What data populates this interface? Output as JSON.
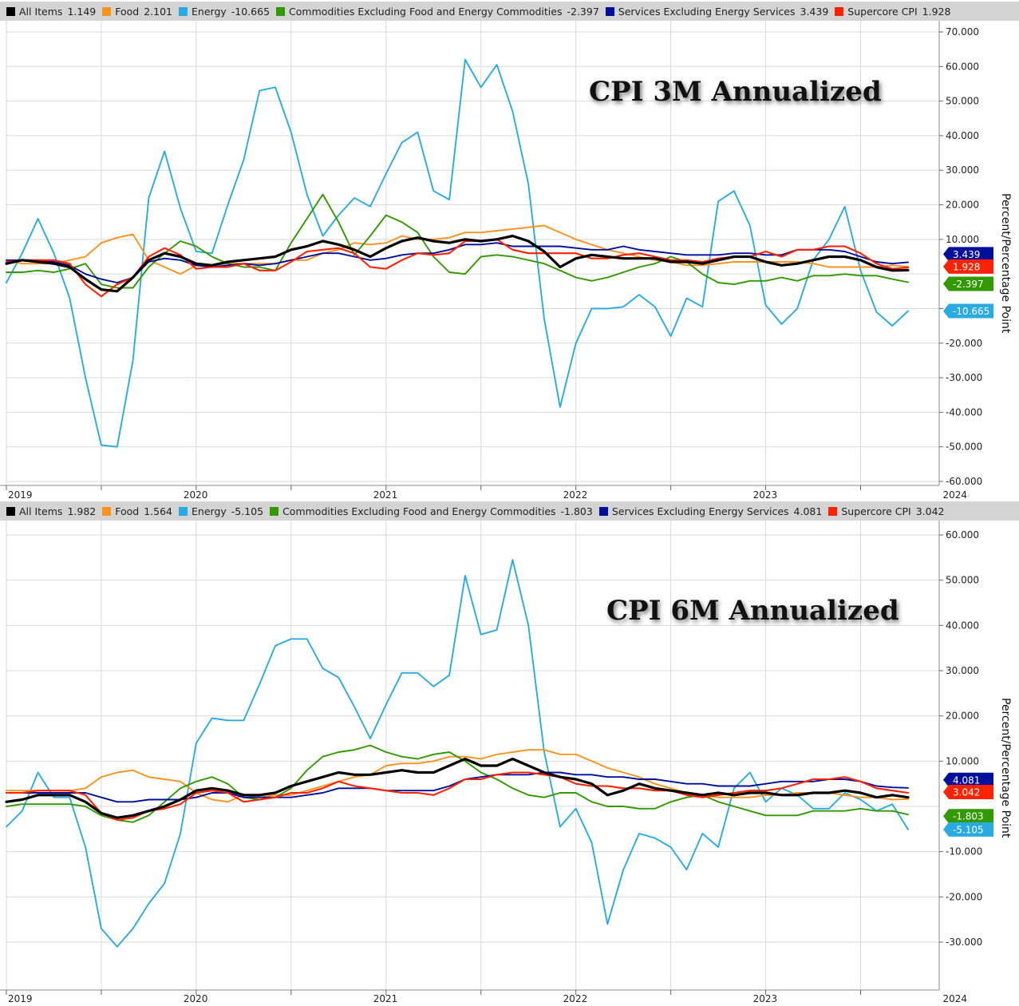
{
  "colors": {
    "all_items": "#000000",
    "food": "#f7931e",
    "energy": "#29abe2",
    "core_goods": "#339900",
    "core_services": "#000e9c",
    "supercore": "#ff2200"
  },
  "chart_data": [
    {
      "type": "line",
      "title": "CPI 3M Annualized",
      "ylabel": "Percent/Percentage Point",
      "ylim": [
        -62,
        72
      ],
      "y_ticks": [
        "70.000",
        "60.000",
        "50.000",
        "40.000",
        "30.000",
        "20.000",
        "10.000",
        "-10.000",
        "-20.000",
        "-30.000",
        "-40.000",
        "-50.000",
        "-60.000"
      ],
      "x_ticks": [
        "2019",
        "2020",
        "2021",
        "2022",
        "2023",
        "2024"
      ],
      "legend": [
        {
          "key": "all_items",
          "label": "All Items",
          "value": "1.149"
        },
        {
          "key": "food",
          "label": "Food",
          "value": "2.101"
        },
        {
          "key": "energy",
          "label": "Energy",
          "value": "-10.665"
        },
        {
          "key": "core_goods",
          "label": "Commodities Excluding Food and Energy Commodities",
          "value": "-2.397"
        },
        {
          "key": "core_services",
          "label": "Services Excluding Energy Services",
          "value": "3.439"
        },
        {
          "key": "supercore",
          "label": "Supercore CPI",
          "value": "1.928"
        }
      ],
      "badges": [
        {
          "key": "core_services",
          "text": "3.439"
        },
        {
          "key": "supercore",
          "text": "1.928"
        },
        {
          "key": "core_goods",
          "text": "-2.397"
        },
        {
          "key": "energy",
          "text": "-10.665"
        }
      ],
      "x_start": "2019-01",
      "series": [
        {
          "key": "energy",
          "name": "Energy",
          "values": [
            -2.5,
            6,
            16,
            6,
            -7,
            -30,
            -49.5,
            -50,
            -25,
            22,
            35.5,
            19,
            6.5,
            6,
            20,
            33,
            53,
            54,
            41,
            23,
            11,
            17,
            22,
            19.5,
            29,
            38,
            41,
            24,
            21.5,
            62,
            54,
            60.5,
            47,
            26,
            -13,
            -38.5,
            -20,
            -10,
            -10,
            -9.5,
            -6,
            -9.5,
            -18,
            -7,
            -9.5,
            21,
            24,
            14,
            -9,
            -14.5,
            -10,
            4,
            10,
            19.5,
            1,
            -11,
            -15,
            -10.7
          ]
        },
        {
          "key": "food",
          "name": "Food",
          "values": [
            4,
            3,
            3,
            3,
            4,
            5,
            9,
            10.5,
            11.5,
            4,
            2,
            0,
            2.5,
            2.5,
            3,
            3,
            3,
            3,
            4,
            4,
            6,
            7,
            9,
            8.5,
            9,
            11,
            10,
            10,
            10.5,
            12,
            12,
            12.5,
            13,
            13.5,
            14,
            12,
            10,
            8.5,
            7,
            6,
            5,
            4,
            3.5,
            2.5,
            2.5,
            3,
            3.5,
            3.5,
            3.5,
            3.5,
            3.5,
            3,
            2,
            2,
            2,
            2,
            2.5,
            2.1
          ]
        },
        {
          "key": "core_goods",
          "name": "Commodities Excluding Food and Energy Commodities",
          "values": [
            0.5,
            0.5,
            1,
            0.5,
            1.5,
            3,
            -3,
            -4,
            -4,
            2,
            6,
            9.5,
            8,
            5,
            3,
            2,
            2,
            1,
            9,
            16,
            23,
            15,
            5.5,
            11,
            17,
            15,
            12,
            5,
            0.5,
            0,
            5,
            5.5,
            5,
            4,
            3,
            1,
            -1,
            -2,
            -1,
            0.5,
            2,
            3,
            5,
            3.5,
            0,
            -2.5,
            -3,
            -2,
            -2,
            -1,
            -2,
            -0.5,
            -0.5,
            0,
            -0.5,
            -0.5,
            -1.5,
            -2.4
          ]
        },
        {
          "key": "core_services",
          "name": "Services Excluding Energy Services",
          "values": [
            4,
            4,
            4,
            3.5,
            2.5,
            0,
            -1.5,
            -2.5,
            -1,
            3.5,
            4.5,
            4,
            2.5,
            2,
            2.5,
            3,
            2.5,
            3,
            4,
            5,
            6,
            6,
            5,
            4,
            4.5,
            5.5,
            6,
            6,
            7,
            8.5,
            8.5,
            9,
            8,
            8,
            8,
            8,
            7.5,
            7,
            7,
            8,
            7,
            6.5,
            6,
            5.5,
            5.5,
            5.5,
            6,
            6,
            5.5,
            5.5,
            7,
            7,
            7,
            6.5,
            5,
            3.5,
            3,
            3.4
          ]
        },
        {
          "key": "supercore",
          "name": "Supercore CPI",
          "values": [
            3.5,
            4,
            4,
            4,
            3,
            -3,
            -6.5,
            -3,
            -1,
            5,
            7.5,
            5.5,
            1.5,
            2,
            2,
            3,
            1,
            1,
            3.5,
            6.5,
            7,
            7.5,
            6,
            2,
            1.5,
            4,
            6,
            5.5,
            6,
            9.5,
            9.5,
            10,
            7,
            6,
            6,
            6,
            6,
            4.5,
            4.5,
            5.5,
            6,
            5,
            4,
            4,
            3.5,
            4.5,
            5,
            5,
            6.5,
            5,
            7,
            7,
            8,
            8,
            6,
            3,
            1.5,
            1.9
          ]
        },
        {
          "key": "all_items",
          "name": "All Items",
          "values": [
            3,
            4,
            3.5,
            3,
            2,
            -1.5,
            -4.5,
            -5,
            -1,
            4,
            6,
            5,
            3,
            2.5,
            3.5,
            4,
            4.5,
            5,
            7,
            8,
            9.5,
            8.5,
            7,
            5,
            7.5,
            9.5,
            10.5,
            9.5,
            9,
            10,
            9.5,
            10,
            11,
            9.5,
            6.5,
            2,
            4.5,
            5.5,
            5,
            4.5,
            4.5,
            4.5,
            3.5,
            3.5,
            3,
            4,
            5,
            5,
            3.5,
            2.5,
            3,
            4,
            5,
            5,
            4,
            2,
            1,
            1.1
          ]
        }
      ]
    },
    {
      "type": "line",
      "title": "CPI 6M Annualized",
      "ylabel": "Percent/Percentage Point",
      "ylim": [
        -36,
        63
      ],
      "y_ticks": [
        "60.000",
        "50.000",
        "40.000",
        "30.000",
        "20.000",
        "10.000",
        "-10.000",
        "-20.000",
        "-30.000"
      ],
      "x_ticks": [
        "2019",
        "2020",
        "2021",
        "2022",
        "2023",
        "2024"
      ],
      "legend": [
        {
          "key": "all_items",
          "label": "All Items",
          "value": "1.982"
        },
        {
          "key": "food",
          "label": "Food",
          "value": "1.564"
        },
        {
          "key": "energy",
          "label": "Energy",
          "value": "-5.105"
        },
        {
          "key": "core_goods",
          "label": "Commodities Excluding Food and Energy Commodities",
          "value": "-1.803"
        },
        {
          "key": "core_services",
          "label": "Services Excluding Energy Services",
          "value": "4.081"
        },
        {
          "key": "supercore",
          "label": "Supercore CPI",
          "value": "3.042"
        }
      ],
      "badges": [
        {
          "key": "core_services",
          "text": "4.081"
        },
        {
          "key": "supercore",
          "text": "3.042"
        },
        {
          "key": "core_goods",
          "text": "-1.803"
        },
        {
          "key": "energy",
          "text": "-5.105"
        }
      ],
      "x_start": "2019-01",
      "series": [
        {
          "key": "energy",
          "name": "Energy",
          "values": [
            -4.5,
            -1,
            7.5,
            2,
            2,
            -9,
            -27,
            -31,
            -27,
            -21.5,
            -17,
            -6,
            14,
            19.5,
            19,
            19,
            27,
            35.5,
            37,
            37,
            30.5,
            28.5,
            22,
            15,
            22.5,
            29.5,
            29.5,
            26.5,
            29,
            51,
            38,
            39,
            54.5,
            40,
            12,
            -4.5,
            -0.5,
            -8,
            -26,
            -14,
            -6,
            -7,
            -9,
            -14,
            -6,
            -9,
            4,
            7.5,
            1,
            4,
            2.5,
            -0.5,
            -0.5,
            3,
            1.5,
            -1,
            0.5,
            -5.1
          ]
        },
        {
          "key": "food",
          "name": "Food",
          "values": [
            3.5,
            3.5,
            3.5,
            3.5,
            3.5,
            4,
            6.5,
            7.5,
            8,
            6.5,
            6,
            5.5,
            3,
            1.5,
            1,
            2.5,
            2,
            2.5,
            2.5,
            3.5,
            4.5,
            5.5,
            6.5,
            7,
            9,
            9.5,
            9.5,
            10,
            11,
            11,
            10.5,
            11.5,
            12,
            12.5,
            12.5,
            11.5,
            11.5,
            10,
            8.5,
            7.5,
            6.5,
            5,
            4,
            3,
            2.5,
            2,
            2,
            2,
            2.5,
            2.5,
            3,
            3,
            3,
            2.5,
            2,
            2,
            1.5,
            1.6
          ]
        },
        {
          "key": "core_goods",
          "name": "Commodities Excluding Food and Energy Commodities",
          "values": [
            0,
            0.5,
            0.5,
            0.5,
            0.5,
            0,
            -2,
            -3,
            -3.5,
            -2,
            1,
            4,
            5.5,
            6.5,
            5,
            2,
            1.5,
            2,
            4,
            8,
            11,
            12,
            12.5,
            13.5,
            12,
            11,
            10.5,
            11.5,
            12,
            10,
            7.5,
            6,
            4,
            2.5,
            2,
            3,
            3,
            1,
            0,
            0,
            -0.5,
            -0.5,
            1,
            2,
            2.5,
            1,
            0,
            -1,
            -2,
            -2,
            -2,
            -1,
            -1,
            -1,
            -0.5,
            -1,
            -1,
            -1.8
          ]
        },
        {
          "key": "core_services",
          "name": "Services Excluding Energy Services",
          "values": [
            3,
            3,
            3,
            3,
            3,
            3,
            2,
            1,
            1,
            1.5,
            1.5,
            1.5,
            2,
            3,
            3,
            2,
            2,
            2,
            2,
            2.5,
            3,
            4,
            4,
            4,
            3.5,
            3.5,
            3.5,
            3.5,
            4.5,
            6,
            6.5,
            7,
            7,
            7,
            7.5,
            7.5,
            7,
            7,
            6.5,
            6.5,
            6,
            6,
            5.5,
            5,
            5,
            4.5,
            4.5,
            4.5,
            5,
            5.5,
            5.5,
            5.5,
            6,
            6,
            5.5,
            4.5,
            4.2,
            4.1
          ]
        },
        {
          "key": "supercore",
          "name": "Supercore CPI",
          "values": [
            3,
            3,
            3.5,
            3.5,
            3.5,
            2.5,
            -1.5,
            -3,
            -2.5,
            -1,
            -0.5,
            0.5,
            3,
            3.5,
            3,
            1,
            1.5,
            2,
            3,
            3,
            4,
            5.5,
            4.5,
            4,
            3.5,
            3,
            3,
            2.5,
            4,
            6,
            6,
            7,
            7.5,
            7.5,
            7,
            6.5,
            5,
            4.5,
            4.5,
            4,
            4,
            3.5,
            3.5,
            2.5,
            2,
            2.5,
            3,
            3.5,
            3.5,
            4,
            5,
            6,
            6,
            6.5,
            5.5,
            4,
            3.5,
            3.0
          ]
        },
        {
          "key": "all_items",
          "name": "All Items",
          "values": [
            1,
            1.5,
            2.5,
            2.5,
            2.5,
            1,
            -1.5,
            -2.5,
            -2,
            -1,
            0,
            1.5,
            3.5,
            4,
            3.5,
            2.5,
            2.5,
            3,
            4.5,
            5.5,
            6.5,
            7.5,
            7,
            7,
            7.5,
            8,
            7.5,
            7.5,
            9,
            10.5,
            9,
            9,
            10.5,
            9,
            7.5,
            6.5,
            6,
            5,
            2.5,
            3.5,
            5,
            4,
            3.5,
            3,
            2.5,
            3,
            2.5,
            3,
            3,
            2.5,
            2.5,
            3,
            3,
            3.5,
            3,
            2,
            2.5,
            2.0
          ]
        }
      ]
    }
  ]
}
